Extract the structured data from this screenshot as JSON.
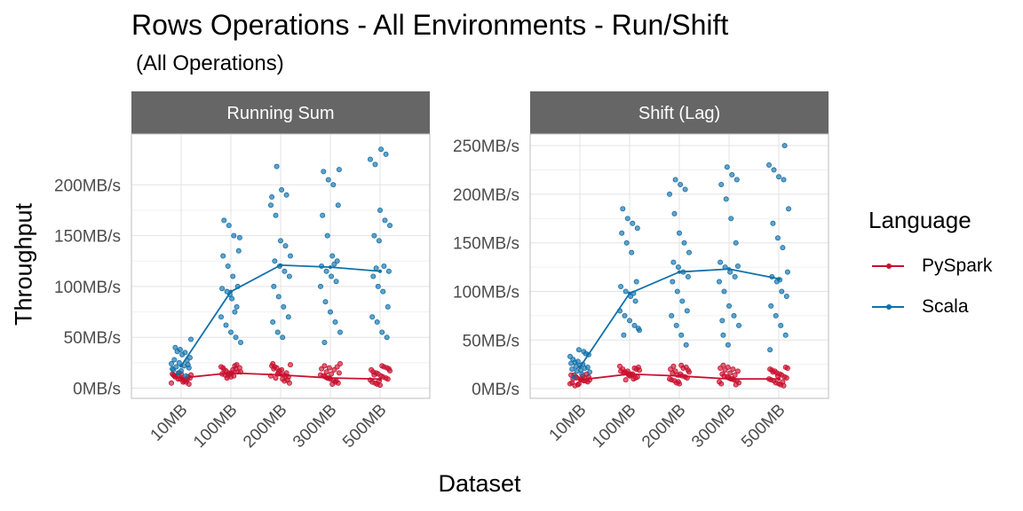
{
  "title": "Rows Operations - All Environments - Run/Shift",
  "subtitle": "(All Operations)",
  "colors": {
    "pyspark": "#C8102E",
    "scala": "#1170AA",
    "strip": "#666666",
    "grid": "#E3E3E3",
    "panel_border": "#BDBDBD"
  },
  "legend": {
    "title": "Language",
    "items": [
      {
        "name": "PySpark",
        "color": "#C8102E"
      },
      {
        "name": "Scala",
        "color": "#1170AA"
      }
    ]
  },
  "chart_data": {
    "type": "scatter",
    "xlabel": "Dataset",
    "ylabel": "Throughput",
    "categories": [
      "10MB",
      "100MB",
      "200MB",
      "300MB",
      "500MB"
    ],
    "legend_position": "right",
    "grid": true,
    "panels": [
      {
        "strip": "Running Sum",
        "ylim": [
          -10,
          250
        ],
        "yticks": [
          0,
          50,
          100,
          150,
          200
        ],
        "yticklabels": [
          "0MB/s",
          "50MB/s",
          "100MB/s",
          "150MB/s",
          "200MB/s"
        ],
        "series": [
          {
            "name": "PySpark",
            "mean": [
              10,
              15,
              13,
              10,
              9
            ],
            "points": [
              [
                5,
                8,
                10,
                12,
                14,
                11,
                6,
                9,
                13,
                4,
                7,
                15,
                12,
                10,
                8,
                9,
                11,
                13,
                6,
                14
              ],
              [
                12,
                15,
                18,
                20,
                22,
                14,
                13,
                16,
                19,
                11,
                17,
                21,
                23,
                15,
                10,
                14,
                16,
                18,
                12,
                20
              ],
              [
                10,
                12,
                15,
                18,
                20,
                22,
                8,
                9,
                14,
                24,
                11,
                13,
                16,
                19,
                5,
                7,
                17,
                21,
                23,
                12
              ],
              [
                5,
                8,
                10,
                12,
                15,
                18,
                20,
                22,
                24,
                6,
                9,
                11,
                13,
                7,
                14,
                16,
                19,
                21,
                4,
                10
              ],
              [
                3,
                5,
                8,
                10,
                12,
                15,
                18,
                20,
                22,
                4,
                6,
                9,
                11,
                14,
                16,
                19,
                21,
                7,
                13,
                17
              ]
            ]
          },
          {
            "name": "Scala",
            "mean": [
              22,
              95,
              121,
              119,
              115
            ],
            "points": [
              [
                15,
                18,
                20,
                22,
                25,
                28,
                30,
                35,
                38,
                40,
                48,
                12,
                17,
                21,
                24,
                27,
                33,
                36,
                19,
                23
              ],
              [
                45,
                50,
                55,
                62,
                70,
                80,
                88,
                95,
                98,
                100,
                110,
                120,
                130,
                135,
                150,
                160,
                165,
                148,
                75,
                92
              ],
              [
                50,
                55,
                65,
                70,
                80,
                90,
                100,
                110,
                115,
                120,
                125,
                130,
                140,
                145,
                170,
                180,
                190,
                195,
                218,
                188
              ],
              [
                45,
                55,
                65,
                75,
                85,
                100,
                105,
                110,
                115,
                120,
                125,
                130,
                150,
                170,
                180,
                200,
                205,
                213,
                215,
                122
              ],
              [
                50,
                55,
                65,
                70,
                80,
                95,
                100,
                110,
                115,
                120,
                145,
                150,
                160,
                165,
                175,
                220,
                225,
                230,
                235,
                118
              ]
            ]
          }
        ]
      },
      {
        "strip": "Shift (Lag)",
        "ylim": [
          -10,
          262
        ],
        "yticks": [
          0,
          50,
          100,
          150,
          200,
          250
        ],
        "yticklabels": [
          "0MB/s",
          "50MB/s",
          "100MB/s",
          "150MB/s",
          "200MB/s",
          "250MB/s"
        ],
        "series": [
          {
            "name": "PySpark",
            "mean": [
              9,
              15,
              13,
              10,
              10
            ],
            "points": [
              [
                3,
                5,
                8,
                10,
                12,
                14,
                15,
                9,
                11,
                6,
                7,
                13,
                4,
                10,
                12,
                8,
                5,
                14,
                9,
                11
              ],
              [
                12,
                15,
                18,
                20,
                22,
                10,
                14,
                16,
                19,
                21,
                13,
                17,
                23,
                11,
                15,
                9,
                18,
                20,
                14,
                16
              ],
              [
                5,
                8,
                10,
                12,
                15,
                18,
                20,
                22,
                24,
                6,
                9,
                11,
                13,
                14,
                16,
                19,
                21,
                7,
                23,
                17
              ],
              [
                5,
                8,
                10,
                12,
                15,
                18,
                20,
                22,
                24,
                6,
                9,
                11,
                13,
                7,
                14,
                16,
                19,
                21,
                4,
                10
              ],
              [
                3,
                5,
                8,
                10,
                12,
                15,
                18,
                20,
                22,
                4,
                6,
                9,
                11,
                14,
                16,
                19,
                21,
                7,
                13,
                17
              ]
            ]
          },
          {
            "name": "Scala",
            "mean": [
              22,
              98,
              120,
              123,
              113
            ],
            "points": [
              [
                15,
                18,
                20,
                22,
                25,
                28,
                30,
                35,
                38,
                40,
                12,
                17,
                21,
                24,
                27,
                33,
                36,
                19,
                23,
                26
              ],
              [
                55,
                60,
                65,
                70,
                75,
                80,
                90,
                95,
                100,
                105,
                110,
                140,
                150,
                160,
                165,
                170,
                175,
                185,
                62,
                98
              ],
              [
                45,
                55,
                65,
                75,
                80,
                90,
                100,
                110,
                115,
                120,
                125,
                130,
                140,
                150,
                160,
                180,
                200,
                205,
                210,
                215
              ],
              [
                45,
                55,
                65,
                75,
                85,
                100,
                110,
                115,
                120,
                125,
                130,
                150,
                175,
                195,
                210,
                215,
                220,
                228,
                70,
                126
              ],
              [
                40,
                55,
                65,
                75,
                85,
                95,
                100,
                110,
                115,
                120,
                145,
                155,
                170,
                185,
                215,
                218,
                225,
                230,
                250,
                112
              ]
            ]
          }
        ]
      }
    ]
  }
}
